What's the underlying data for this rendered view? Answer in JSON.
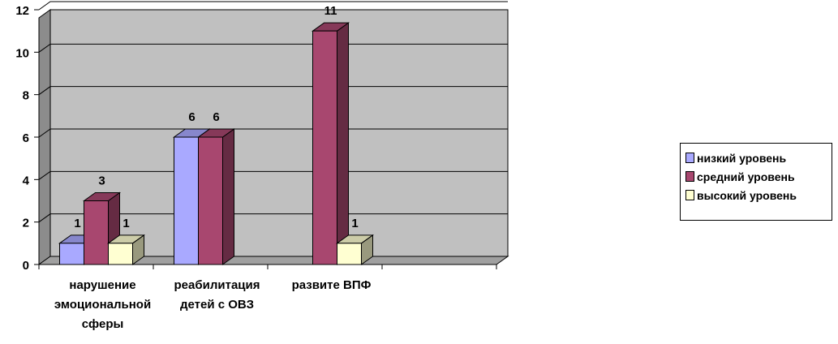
{
  "chart_data": {
    "type": "bar",
    "categories": [
      "нарушение эмоциональной сферы",
      "реабилитация детей с ОВЗ",
      "развите ВПФ",
      ""
    ],
    "category_lines": [
      [
        "нарушение",
        "эмоциональной",
        "сферы"
      ],
      [
        "реабилитация",
        "детей с ОВЗ"
      ],
      [
        "развите ВПФ"
      ],
      []
    ],
    "series": [
      {
        "name": "низкий уровень",
        "values": [
          1,
          6,
          null,
          null
        ],
        "color": "#a9a9ff"
      },
      {
        "name": "средний уровень",
        "values": [
          3,
          6,
          11,
          null
        ],
        "color": "#a8476f"
      },
      {
        "name": "высокий уровень",
        "values": [
          1,
          null,
          1,
          null
        ],
        "color": "#ffffd2"
      }
    ],
    "yticks": [
      "0",
      "2",
      "4",
      "6",
      "8",
      "10",
      "12"
    ],
    "ylim": [
      0,
      12
    ],
    "grid": true,
    "wall_color": "#c0c0c0",
    "legend_position": "right",
    "title": "",
    "xlabel": "",
    "ylabel": ""
  }
}
